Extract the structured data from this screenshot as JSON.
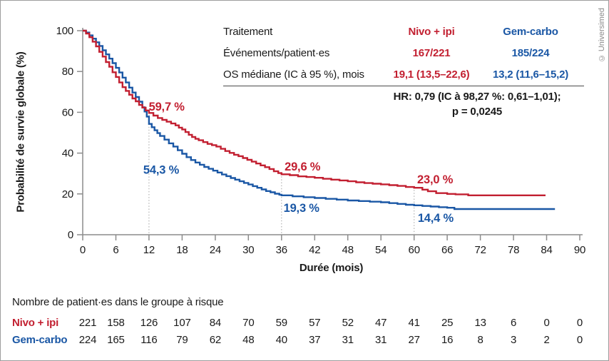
{
  "credit": "© Universimed",
  "colors": {
    "red": "#c21f30",
    "blue": "#1a57a5",
    "axis": "#8c8c8c",
    "dotted": "#b3b3b3",
    "text": "#1a1a1a",
    "rule": "#4a4a4a",
    "credit_gray": "#8a8a8a"
  },
  "summary_table": {
    "header": {
      "label": "Traitement",
      "nivo": "Nivo + ipi",
      "gem": "Gem-carbo"
    },
    "rows": [
      {
        "label": "Événements/patient·es",
        "nivo": "167/221",
        "gem": "185/224"
      },
      {
        "label": "OS médiane (IC à 95 %), mois",
        "nivo": "19,1 (13,5–22,6)",
        "gem": "13,2 (11,6–15,2)"
      }
    ],
    "hr_line1": "HR: 0,79 (IC à 98,27 %: 0,61–1,01);",
    "hr_line2": "p = 0,0245"
  },
  "chart_data": {
    "type": "line",
    "subtype": "kaplan-meier-step",
    "title": "",
    "xlabel": "Durée (mois)",
    "ylabel": "Probabilité de survie globale (%)",
    "xlim": [
      0,
      90
    ],
    "ylim": [
      0,
      100
    ],
    "xticks": [
      0,
      6,
      12,
      18,
      24,
      30,
      36,
      42,
      48,
      54,
      60,
      66,
      72,
      78,
      84,
      90
    ],
    "yticks": [
      0,
      20,
      40,
      60,
      80,
      100
    ],
    "grid": false,
    "legend_position": "none",
    "series": [
      {
        "name": "Nivo + ipi",
        "color": "red",
        "milestones": [
          {
            "month": 12,
            "pct": 59.7
          },
          {
            "month": 36,
            "pct": 29.6
          },
          {
            "month": 60,
            "pct": 23.0
          }
        ],
        "points": [
          [
            0,
            100
          ],
          [
            0.6,
            98.6
          ],
          [
            1.2,
            96.8
          ],
          [
            1.8,
            94.6
          ],
          [
            2.4,
            92.3
          ],
          [
            3,
            89.6
          ],
          [
            3.6,
            87.3
          ],
          [
            4.2,
            84.6
          ],
          [
            4.8,
            82.3
          ],
          [
            5.4,
            79.6
          ],
          [
            6,
            77.3
          ],
          [
            6.6,
            74.6
          ],
          [
            7.2,
            72.3
          ],
          [
            7.8,
            70.5
          ],
          [
            8.4,
            68.6
          ],
          [
            9,
            66.8
          ],
          [
            9.6,
            65.4
          ],
          [
            10.2,
            63.6
          ],
          [
            10.8,
            62.3
          ],
          [
            11.4,
            60.9
          ],
          [
            12,
            59.7
          ],
          [
            12.8,
            58.4
          ],
          [
            13.6,
            57.2
          ],
          [
            14.4,
            56.3
          ],
          [
            15.2,
            55.4
          ],
          [
            16,
            54.5
          ],
          [
            16.8,
            53.6
          ],
          [
            17.4,
            52.5
          ],
          [
            18,
            51.6
          ],
          [
            18.6,
            50.3
          ],
          [
            19.2,
            49
          ],
          [
            19.8,
            47.9
          ],
          [
            20.4,
            47
          ],
          [
            21,
            46.3
          ],
          [
            21.8,
            45.4
          ],
          [
            22.6,
            44.5
          ],
          [
            23.4,
            43.9
          ],
          [
            24.2,
            43.2
          ],
          [
            25,
            42.1
          ],
          [
            25.8,
            41
          ],
          [
            26.6,
            40.1
          ],
          [
            27.4,
            39.2
          ],
          [
            28.2,
            38.5
          ],
          [
            29,
            37.6
          ],
          [
            29.8,
            36.7
          ],
          [
            30.6,
            35.8
          ],
          [
            31.4,
            34.9
          ],
          [
            32.2,
            34
          ],
          [
            33,
            33.1
          ],
          [
            33.8,
            32.2
          ],
          [
            34.6,
            31.1
          ],
          [
            35.4,
            30.2
          ],
          [
            36,
            29.6
          ],
          [
            37.5,
            29.2
          ],
          [
            39,
            28.6
          ],
          [
            40.5,
            28.3
          ],
          [
            42,
            27.9
          ],
          [
            43.5,
            27.4
          ],
          [
            45,
            27
          ],
          [
            46.5,
            26.6
          ],
          [
            48,
            26.2
          ],
          [
            49.5,
            25.7
          ],
          [
            51,
            25.3
          ],
          [
            52.5,
            25
          ],
          [
            54,
            24.7
          ],
          [
            55.5,
            24.3
          ],
          [
            57,
            23.9
          ],
          [
            58.5,
            23.4
          ],
          [
            60,
            23
          ],
          [
            61.5,
            22.1
          ],
          [
            62.5,
            21.3
          ],
          [
            64,
            20.4
          ],
          [
            66,
            20
          ],
          [
            67.5,
            19.8
          ],
          [
            69.8,
            19.3
          ],
          [
            83.8,
            19.3
          ]
        ]
      },
      {
        "name": "Gem-carbo",
        "color": "blue",
        "milestones": [
          {
            "month": 12,
            "pct": 54.3
          },
          {
            "month": 36,
            "pct": 19.3
          },
          {
            "month": 60,
            "pct": 14.4
          }
        ],
        "points": [
          [
            0,
            100
          ],
          [
            0.6,
            99.1
          ],
          [
            1.2,
            97.7
          ],
          [
            1.8,
            96.1
          ],
          [
            2.4,
            94.3
          ],
          [
            3,
            92.5
          ],
          [
            3.6,
            90.4
          ],
          [
            4.2,
            88.4
          ],
          [
            4.8,
            86.3
          ],
          [
            5.4,
            84.1
          ],
          [
            6,
            81.8
          ],
          [
            6.6,
            79.5
          ],
          [
            7.2,
            77
          ],
          [
            7.8,
            74.6
          ],
          [
            8.4,
            72.1
          ],
          [
            9,
            69.7
          ],
          [
            9.6,
            67.5
          ],
          [
            10.2,
            65.2
          ],
          [
            10.8,
            62.5
          ],
          [
            11.2,
            60.4
          ],
          [
            11.6,
            57.9
          ],
          [
            12,
            54.3
          ],
          [
            12.5,
            52.7
          ],
          [
            13,
            51.2
          ],
          [
            13.5,
            49.8
          ],
          [
            14,
            48.4
          ],
          [
            14.8,
            46.6
          ],
          [
            15.6,
            44.8
          ],
          [
            16.4,
            43.2
          ],
          [
            17.2,
            41.4
          ],
          [
            18,
            39.7
          ],
          [
            18.8,
            38
          ],
          [
            19.6,
            36.6
          ],
          [
            20.4,
            35.4
          ],
          [
            21.2,
            34.3
          ],
          [
            22,
            33.2
          ],
          [
            22.8,
            32.3
          ],
          [
            23.6,
            31.4
          ],
          [
            24.4,
            30.5
          ],
          [
            25.2,
            29.5
          ],
          [
            26,
            28.7
          ],
          [
            26.8,
            27.8
          ],
          [
            27.6,
            27
          ],
          [
            28.4,
            26.2
          ],
          [
            29.2,
            25.4
          ],
          [
            30,
            24.6
          ],
          [
            30.8,
            23.8
          ],
          [
            31.6,
            23
          ],
          [
            32.4,
            22.2
          ],
          [
            33.2,
            21.4
          ],
          [
            34,
            20.8
          ],
          [
            34.8,
            20.1
          ],
          [
            35.6,
            19.6
          ],
          [
            36,
            19.3
          ],
          [
            38,
            18.8
          ],
          [
            40,
            18.4
          ],
          [
            42,
            18
          ],
          [
            44,
            17.6
          ],
          [
            46,
            17.2
          ],
          [
            48,
            16.8
          ],
          [
            50,
            16.5
          ],
          [
            52,
            16.2
          ],
          [
            54,
            15.9
          ],
          [
            55.5,
            15.5
          ],
          [
            57,
            15.1
          ],
          [
            58.5,
            14.7
          ],
          [
            60,
            14.4
          ],
          [
            61.5,
            14.1
          ],
          [
            63,
            13.8
          ],
          [
            64.5,
            13.5
          ],
          [
            66,
            13.2
          ],
          [
            67.3,
            12.6
          ],
          [
            85.5,
            12.6
          ]
        ]
      }
    ],
    "annotations": [
      {
        "text": "59,7 %",
        "color": "red",
        "month": 15.2,
        "pct": 63
      },
      {
        "text": "54,3 %",
        "color": "blue",
        "month": 14.2,
        "pct": 32
      },
      {
        "text": "29,6 %",
        "color": "red",
        "month": 39.8,
        "pct": 33.5
      },
      {
        "text": "19,3 %",
        "color": "blue",
        "month": 39.6,
        "pct": 13.3
      },
      {
        "text": "23,0 %",
        "color": "red",
        "month": 63.8,
        "pct": 27.3
      },
      {
        "text": "14,4 %",
        "color": "blue",
        "month": 63.9,
        "pct": 8.4
      }
    ],
    "droplines": [
      {
        "month": 12,
        "from_pct": 59.7
      },
      {
        "month": 36,
        "from_pct": 29.6
      },
      {
        "month": 60,
        "from_pct": 23.0
      }
    ]
  },
  "risk_table": {
    "title": "Nombre de patient·es dans le groupe à risque",
    "months": [
      0,
      6,
      12,
      18,
      24,
      30,
      36,
      42,
      48,
      54,
      60,
      66,
      72,
      78,
      84,
      90
    ],
    "rows": [
      {
        "label": "Nivo + ipi",
        "color": "red",
        "values": [
          221,
          158,
          126,
          107,
          84,
          70,
          59,
          57,
          52,
          47,
          41,
          25,
          13,
          6,
          0,
          0
        ]
      },
      {
        "label": "Gem-carbo",
        "color": "blue",
        "values": [
          224,
          165,
          116,
          79,
          62,
          48,
          40,
          37,
          31,
          31,
          27,
          16,
          8,
          3,
          2,
          0
        ]
      }
    ]
  }
}
